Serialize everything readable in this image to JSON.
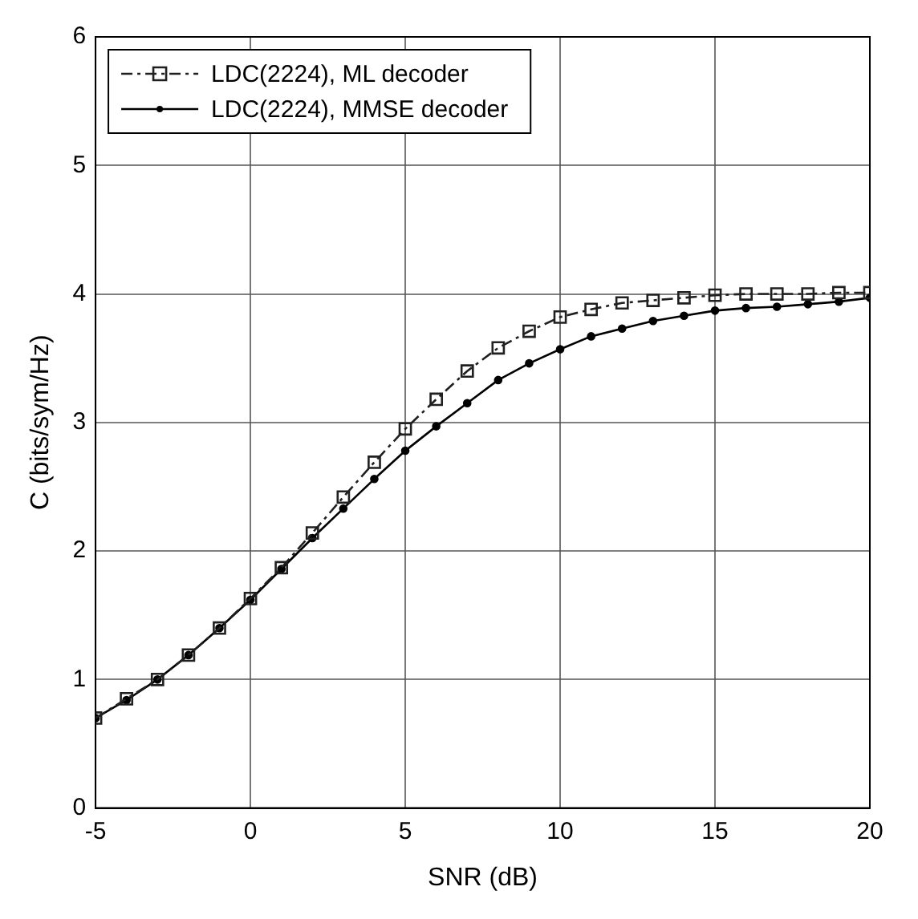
{
  "chart_data": {
    "type": "line",
    "xlabel": "SNR (dB)",
    "ylabel": "C (bits/sym/Hz)",
    "x": [
      -5,
      -4,
      -3,
      -2,
      -1,
      0,
      1,
      2,
      3,
      4,
      5,
      6,
      7,
      8,
      9,
      10,
      11,
      12,
      13,
      14,
      15,
      16,
      17,
      18,
      19,
      20
    ],
    "xlim": [
      -5,
      20
    ],
    "xticks": [
      -5,
      0,
      5,
      10,
      15,
      20
    ],
    "ylim": [
      0,
      6
    ],
    "yticks": [
      0,
      1,
      2,
      3,
      4,
      5,
      6
    ],
    "grid": true,
    "legend": "top left",
    "series": [
      {
        "name": "LDC(2224), ML decoder",
        "color": "#202020",
        "marker": "square",
        "line_style": "dashed",
        "values": [
          0.7,
          0.85,
          1.0,
          1.19,
          1.4,
          1.63,
          1.87,
          2.14,
          2.42,
          2.69,
          2.95,
          3.18,
          3.4,
          3.58,
          3.71,
          3.82,
          3.88,
          3.93,
          3.95,
          3.97,
          3.99,
          4.0,
          4.0,
          4.0,
          4.01,
          4.01
        ]
      },
      {
        "name": "LDC(2224), MMSE decoder",
        "color": "#000000",
        "marker": "circle",
        "line_style": "solid",
        "values": [
          0.7,
          0.84,
          1.0,
          1.19,
          1.4,
          1.62,
          1.86,
          2.1,
          2.33,
          2.56,
          2.78,
          2.97,
          3.15,
          3.33,
          3.46,
          3.57,
          3.67,
          3.73,
          3.79,
          3.83,
          3.87,
          3.89,
          3.9,
          3.92,
          3.94,
          3.97
        ]
      }
    ]
  }
}
